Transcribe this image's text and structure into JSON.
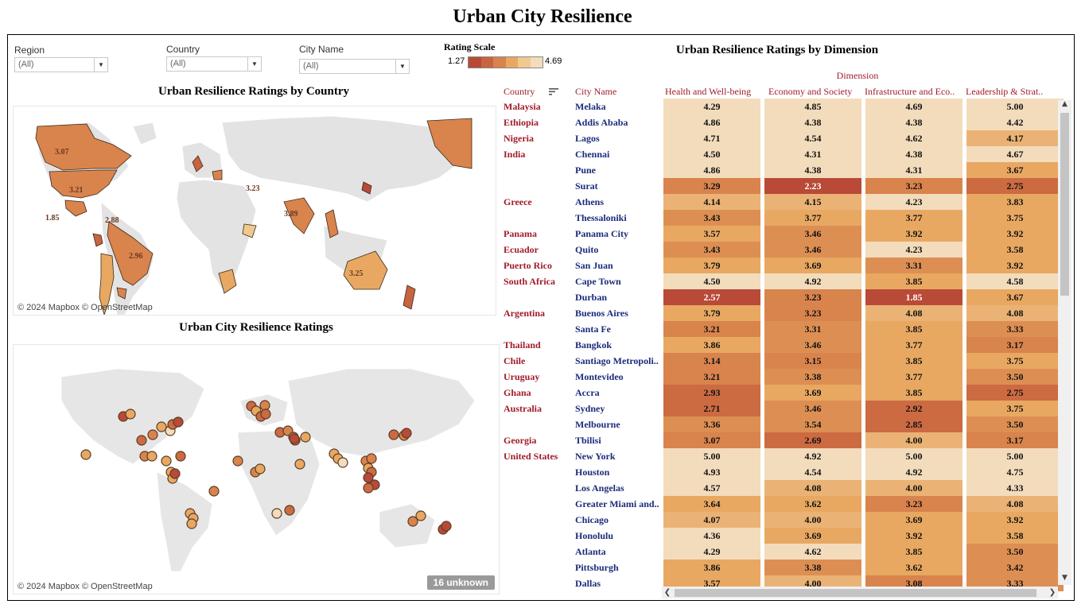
{
  "title": "Urban City Resilience",
  "filters": [
    {
      "label": "Region",
      "value": "(All)"
    },
    {
      "label": "Country",
      "value": "(All)"
    },
    {
      "label": "City Name",
      "value": "(All)"
    }
  ],
  "legend": {
    "title": "Rating Scale",
    "min": "1.27",
    "max": "4.69",
    "colors": [
      "#b84a37",
      "#c8643f",
      "#d9834d",
      "#e8a862",
      "#f0c98e",
      "#f3dcbc"
    ]
  },
  "country_map": {
    "title": "Urban Resilience Ratings by Country",
    "attribution": "© 2024 Mapbox © OpenStreetMap",
    "labels": [
      "3.07",
      "3.21",
      "3.89",
      "3.25",
      "2.96",
      "1.85",
      "3.23",
      "2.88"
    ]
  },
  "city_map": {
    "title": "Urban City Resilience Ratings",
    "attribution": "© 2024 Mapbox © OpenStreetMap",
    "unknown": "16 unknown"
  },
  "heatmap": {
    "title": "Urban Resilience Ratings by Dimension",
    "dimension_label": "Dimension",
    "country_header": "Country",
    "city_header": "City Name",
    "columns": [
      "Health and Well-being",
      "Economy and Society",
      "Infrastructure and Eco..",
      "Leadership & Strat.."
    ],
    "rows": [
      {
        "country": "Malaysia",
        "city": "Melaka",
        "values": [
          "4.29",
          "4.85",
          "4.69",
          "5.00"
        ]
      },
      {
        "country": "Ethiopia",
        "city": "Addis Ababa",
        "values": [
          "4.86",
          "4.38",
          "4.38",
          "4.42"
        ]
      },
      {
        "country": "Nigeria",
        "city": "Lagos",
        "values": [
          "4.71",
          "4.54",
          "4.62",
          "4.17"
        ]
      },
      {
        "country": "India",
        "city": "Chennai",
        "values": [
          "4.50",
          "4.31",
          "4.38",
          "4.67"
        ]
      },
      {
        "country": "",
        "city": "Pune",
        "values": [
          "4.86",
          "4.38",
          "4.31",
          "3.67"
        ]
      },
      {
        "country": "",
        "city": "Surat",
        "values": [
          "3.29",
          "2.23",
          "3.23",
          "2.75"
        ]
      },
      {
        "country": "Greece",
        "city": "Athens",
        "values": [
          "4.14",
          "4.15",
          "4.23",
          "3.83"
        ]
      },
      {
        "country": "",
        "city": "Thessaloniki",
        "values": [
          "3.43",
          "3.77",
          "3.77",
          "3.75"
        ]
      },
      {
        "country": "Panama",
        "city": "Panama City",
        "values": [
          "3.57",
          "3.46",
          "3.92",
          "3.92"
        ]
      },
      {
        "country": "Ecuador",
        "city": "Quito",
        "values": [
          "3.43",
          "3.46",
          "4.23",
          "3.58"
        ]
      },
      {
        "country": "Puerto Rico",
        "city": "San Juan",
        "values": [
          "3.79",
          "3.69",
          "3.31",
          "3.92"
        ]
      },
      {
        "country": "South Africa",
        "city": "Cape Town",
        "values": [
          "4.50",
          "4.92",
          "3.85",
          "4.58"
        ]
      },
      {
        "country": "",
        "city": "Durban",
        "values": [
          "2.57",
          "3.23",
          "1.85",
          "3.67"
        ]
      },
      {
        "country": "Argentina",
        "city": "Buenos Aires",
        "values": [
          "3.79",
          "3.23",
          "4.08",
          "4.08"
        ]
      },
      {
        "country": "",
        "city": "Santa Fe",
        "values": [
          "3.21",
          "3.31",
          "3.85",
          "3.33"
        ]
      },
      {
        "country": "Thailand",
        "city": "Bangkok",
        "values": [
          "3.86",
          "3.46",
          "3.77",
          "3.17"
        ]
      },
      {
        "country": "Chile",
        "city": "Santiago Metropoli..",
        "values": [
          "3.14",
          "3.15",
          "3.85",
          "3.75"
        ]
      },
      {
        "country": "Uruguay",
        "city": "Montevideo",
        "values": [
          "3.21",
          "3.38",
          "3.77",
          "3.50"
        ]
      },
      {
        "country": "Ghana",
        "city": "Accra",
        "values": [
          "2.93",
          "3.69",
          "3.85",
          "2.75"
        ]
      },
      {
        "country": "Australia",
        "city": "Sydney",
        "values": [
          "2.71",
          "3.46",
          "2.92",
          "3.75"
        ]
      },
      {
        "country": "",
        "city": "Melbourne",
        "values": [
          "3.36",
          "3.54",
          "2.85",
          "3.50"
        ]
      },
      {
        "country": "Georgia",
        "city": "Tbilisi",
        "values": [
          "3.07",
          "2.69",
          "4.00",
          "3.17"
        ]
      },
      {
        "country": "United States",
        "city": "New York",
        "values": [
          "5.00",
          "4.92",
          "5.00",
          "5.00"
        ]
      },
      {
        "country": "",
        "city": "Houston",
        "values": [
          "4.93",
          "4.54",
          "4.92",
          "4.75"
        ]
      },
      {
        "country": "",
        "city": "Los Angelas",
        "values": [
          "4.57",
          "4.08",
          "4.00",
          "4.33"
        ]
      },
      {
        "country": "",
        "city": "Greater Miami and..",
        "values": [
          "3.64",
          "3.62",
          "3.23",
          "4.08"
        ]
      },
      {
        "country": "",
        "city": "Chicago",
        "values": [
          "4.07",
          "4.00",
          "3.69",
          "3.92"
        ]
      },
      {
        "country": "",
        "city": "Honolulu",
        "values": [
          "4.36",
          "3.69",
          "3.92",
          "3.58"
        ]
      },
      {
        "country": "",
        "city": "Atlanta",
        "values": [
          "4.29",
          "4.62",
          "3.85",
          "3.50"
        ]
      },
      {
        "country": "",
        "city": "Pittsburgh",
        "values": [
          "3.86",
          "3.38",
          "3.62",
          "3.42"
        ]
      },
      {
        "country": "",
        "city": "Dallas",
        "values": [
          "3.57",
          "4.00",
          "3.08",
          "3.33"
        ]
      }
    ]
  }
}
